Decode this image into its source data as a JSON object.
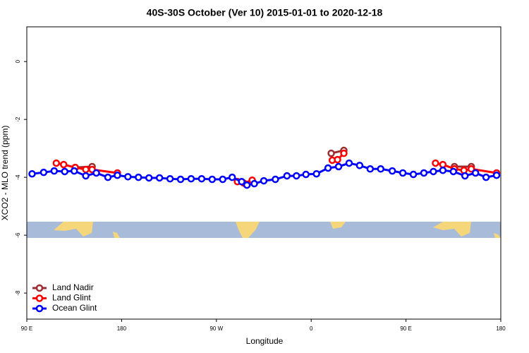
{
  "chart_data": {
    "type": "line",
    "title": "40S-30S October (Ver 10)   2015-01-01 to 2020-12-18",
    "xlabel": "Longitude",
    "ylabel": "XCO2 - MLO trend (ppm)",
    "xlim": [
      90,
      540
    ],
    "ylim": [
      -8.9,
      1.2
    ],
    "xticks": [
      {
        "value": 90,
        "label": "90 E"
      },
      {
        "value": 180,
        "label": "180"
      },
      {
        "value": 270,
        "label": "90 W"
      },
      {
        "value": 360,
        "label": "0"
      },
      {
        "value": 450,
        "label": "90 E"
      },
      {
        "value": 540,
        "label": "180"
      }
    ],
    "yticks": [
      0,
      -2,
      -4,
      -6,
      -8
    ],
    "legend": "bottom-left",
    "series": [
      {
        "name": "Land Nadir",
        "color": "#9b2d30",
        "x": [
          136,
          152,
          null,
          379,
          391,
          null,
          496,
          512
        ],
        "values": [
          -3.66,
          -3.63,
          null,
          -3.17,
          -3.07,
          null,
          -3.63,
          -3.63
        ]
      },
      {
        "name": "Land Glint",
        "color": "#ff0000",
        "x": [
          118,
          125,
          136,
          146,
          152,
          176,
          null,
          290,
          296,
          304,
          null,
          380,
          385,
          391,
          null,
          478,
          485,
          496,
          505,
          512,
          536
        ],
        "values": [
          -3.51,
          -3.56,
          -3.66,
          -3.73,
          -3.73,
          -3.85,
          null,
          -4.15,
          -4.2,
          -4.1,
          null,
          -3.41,
          -3.39,
          -3.17,
          null,
          -3.51,
          -3.56,
          -3.71,
          -3.76,
          -3.71,
          -3.85
        ]
      },
      {
        "name": "Ocean Glint",
        "color": "#0000ff",
        "x": [
          95,
          106,
          116,
          126,
          135,
          146,
          156,
          167,
          176,
          186,
          196,
          206,
          216,
          226,
          236,
          246,
          256,
          266,
          276,
          285,
          294,
          299,
          306,
          315,
          326,
          337,
          346,
          355,
          365,
          376,
          386,
          396,
          406,
          416,
          426,
          437,
          447,
          457,
          467,
          476,
          485,
          495,
          506,
          516,
          526,
          536
        ],
        "values": [
          -3.88,
          -3.83,
          -3.78,
          -3.8,
          -3.78,
          -3.95,
          -3.85,
          -4.0,
          -3.93,
          -3.98,
          -4.0,
          -4.02,
          -4.02,
          -4.05,
          -4.07,
          -4.05,
          -4.05,
          -4.07,
          -4.07,
          -4.0,
          -4.15,
          -4.27,
          -4.22,
          -4.12,
          -4.07,
          -3.95,
          -3.95,
          -3.9,
          -3.88,
          -3.68,
          -3.63,
          -3.51,
          -3.59,
          -3.71,
          -3.71,
          -3.78,
          -3.85,
          -3.9,
          -3.85,
          -3.8,
          -3.76,
          -3.8,
          -3.95,
          -3.85,
          -4.0,
          -3.93
        ]
      }
    ]
  }
}
